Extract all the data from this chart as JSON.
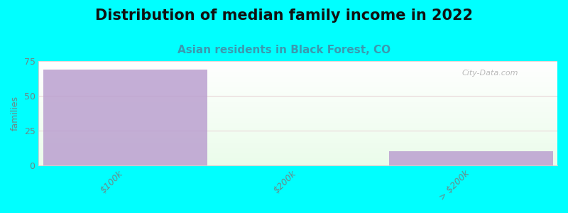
{
  "title": "Distribution of median family income in 2022",
  "subtitle": "Asian residents in Black Forest, CO",
  "categories": [
    "$100k",
    "$200k",
    "> $200k"
  ],
  "values": [
    69,
    0,
    10
  ],
  "bar_color": "#BBA0D0",
  "background_color": "#00FFFF",
  "ylabel": "families",
  "ylim": [
    0,
    75
  ],
  "yticks": [
    0,
    25,
    50,
    75
  ],
  "title_fontsize": 15,
  "subtitle_fontsize": 11,
  "tick_label_fontsize": 9,
  "ylabel_fontsize": 9,
  "watermark": "City-Data.com",
  "grid_color": "#D8D8D8",
  "bar_width": 0.95
}
